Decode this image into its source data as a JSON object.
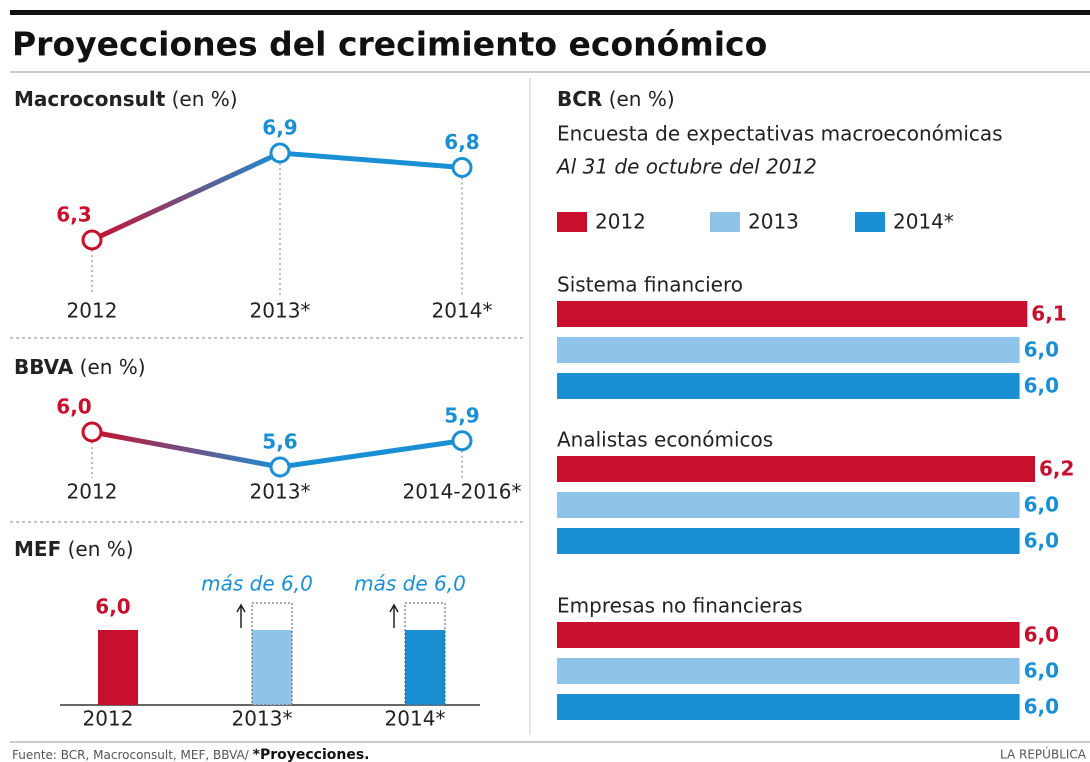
{
  "title": "Proyecciones del crecimiento económico",
  "source": "Fuente: BCR, Macroconsult, MEF, BBVA/",
  "source_note": "*Proyecciones.",
  "brand": "LA REPÚBLICA",
  "chart_data": [
    {
      "type": "line",
      "title": "Macroconsult",
      "subtitle": "(en %)",
      "categories": [
        "2012",
        "2013*",
        "2014*"
      ],
      "values": [
        6.3,
        6.9,
        6.8
      ],
      "value_labels": [
        "6,3",
        "6,9",
        "6,8"
      ],
      "colors": [
        "#c8102e",
        "#1a8fd4",
        "#1a8fd4"
      ]
    },
    {
      "type": "line",
      "title": "BBVA",
      "subtitle": "(en %)",
      "categories": [
        "2012",
        "2013*",
        "2014-2016*"
      ],
      "values": [
        6.0,
        5.6,
        5.9
      ],
      "value_labels": [
        "6,0",
        "5,6",
        "5,9"
      ],
      "colors": [
        "#c8102e",
        "#1a8fd4",
        "#1a8fd4"
      ]
    },
    {
      "type": "bar",
      "title": "MEF",
      "subtitle": "(en %)",
      "categories": [
        "2012",
        "2013*",
        "2014*"
      ],
      "values": [
        6.0,
        6.0,
        6.0
      ],
      "value_labels": [
        "6,0",
        "más de 6,0",
        "más de 6,0"
      ],
      "colors": [
        "#c8102e",
        "#8fc3e8",
        "#1a8fd4"
      ],
      "open_ended": [
        false,
        true,
        true
      ]
    },
    {
      "type": "hbar",
      "title": "BCR",
      "subtitle": "(en %)",
      "description": [
        "Encuesta de expectativas macroeconómicas",
        "Al 31 de octubre del 2012"
      ],
      "categories": [
        "Sistema financiero",
        "Analistas económicos",
        "Empresas no financieras"
      ],
      "series": [
        {
          "name": "2012",
          "color": "#c8102e",
          "values": [
            6.1,
            6.2,
            6.0
          ],
          "value_labels": [
            "6,1",
            "6,2",
            "6,0"
          ]
        },
        {
          "name": "2013",
          "color": "#8fc3e8",
          "values": [
            6.0,
            6.0,
            6.0
          ],
          "value_labels": [
            "6,0",
            "6,0",
            "6,0"
          ]
        },
        {
          "name": "2014*",
          "color": "#1a8fd4",
          "values": [
            6.0,
            6.0,
            6.0
          ],
          "value_labels": [
            "6,0",
            "6,0",
            "6,0"
          ]
        }
      ]
    }
  ]
}
